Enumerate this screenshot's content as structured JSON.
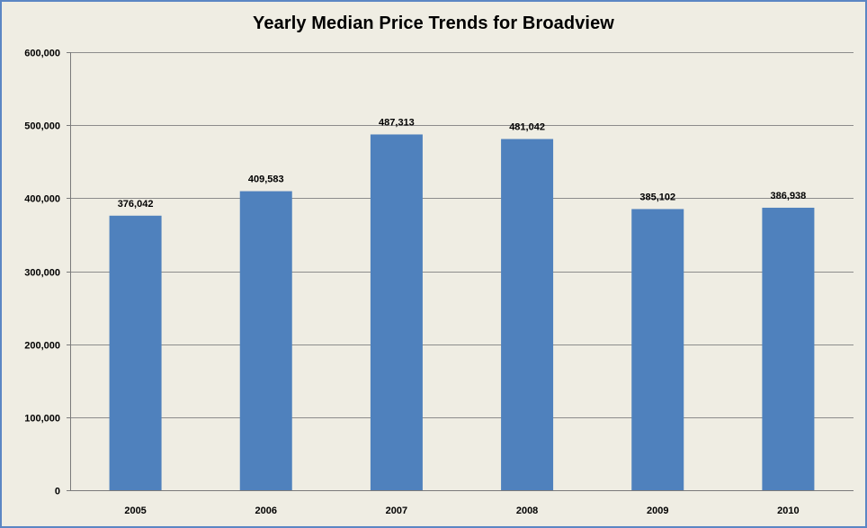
{
  "chart_data": {
    "type": "bar",
    "title": "Yearly Median Price Trends for Broadview",
    "xlabel": "",
    "ylabel": "",
    "categories": [
      "2005",
      "2006",
      "2007",
      "2008",
      "2009",
      "2010"
    ],
    "values": [
      376042,
      409583,
      487313,
      481042,
      385102,
      386938
    ],
    "data_labels": [
      "376,042",
      "409,583",
      "487,313",
      "481,042",
      "385,102",
      "386,938"
    ],
    "ylim": [
      0,
      600000
    ],
    "yticks": [
      0,
      100000,
      200000,
      300000,
      400000,
      500000,
      600000
    ],
    "ytick_labels": [
      "0",
      "100,000",
      "200,000",
      "300,000",
      "400,000",
      "500,000",
      "600,000"
    ],
    "grid": true,
    "legend": "none",
    "bar_color": "#4f81bd",
    "background_color": "#efede3",
    "border_color": "#5b86c4",
    "gridline_color": "#8c8c8c"
  }
}
